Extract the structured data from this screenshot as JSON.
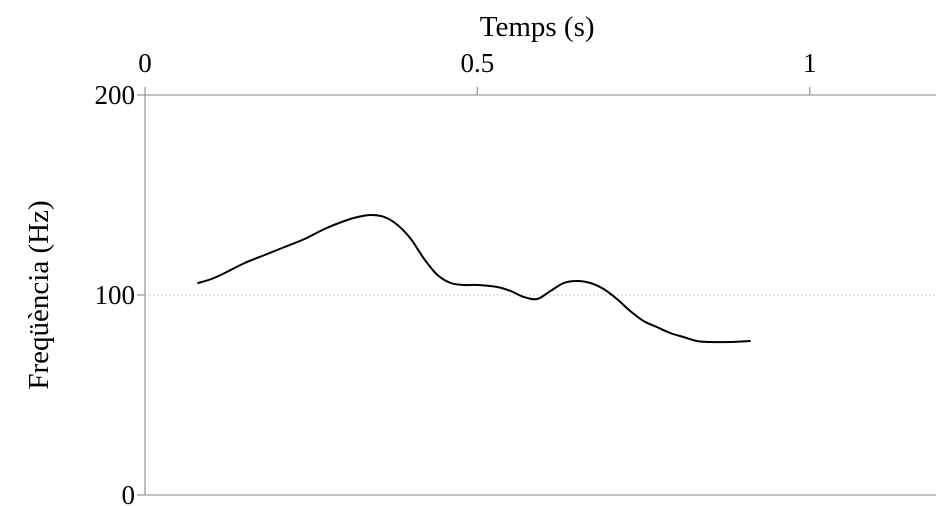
{
  "chart_data": {
    "type": "line",
    "xlabel": "Temps (s)",
    "ylabel": "Freqüència (Hz)",
    "x_axis_position": "top",
    "xlim": [
      0,
      1.19
    ],
    "ylim": [
      0,
      200
    ],
    "x_ticks": [
      {
        "value": 0,
        "label": "0"
      },
      {
        "value": 0.5,
        "label": "0.5"
      },
      {
        "value": 1,
        "label": "1"
      }
    ],
    "y_ticks": [
      {
        "value": 0,
        "label": "0"
      },
      {
        "value": 100,
        "label": "100"
      },
      {
        "value": 200,
        "label": "200"
      }
    ],
    "grid": {
      "horizontal_at": [
        100
      ],
      "style": "dotted"
    },
    "line_color": "#000000",
    "series": [
      {
        "x": [
          0.08,
          0.1,
          0.12,
          0.15,
          0.18,
          0.21,
          0.24,
          0.27,
          0.3,
          0.32,
          0.34,
          0.36,
          0.38,
          0.4,
          0.42,
          0.44,
          0.46,
          0.48,
          0.5,
          0.53,
          0.55,
          0.57,
          0.59,
          0.61,
          0.63,
          0.65,
          0.67,
          0.69,
          0.71,
          0.73,
          0.75,
          0.77,
          0.79,
          0.81,
          0.83,
          0.85,
          0.88,
          0.91
        ],
        "y": [
          106,
          108,
          111,
          116,
          120,
          124,
          128,
          133,
          137,
          139,
          140,
          139,
          135,
          128,
          118,
          110,
          106,
          105,
          105,
          104,
          102,
          99,
          98,
          102,
          106,
          107,
          106,
          103,
          98,
          92,
          87,
          84,
          81,
          79,
          77,
          76.5,
          76.5,
          77
        ]
      }
    ]
  }
}
